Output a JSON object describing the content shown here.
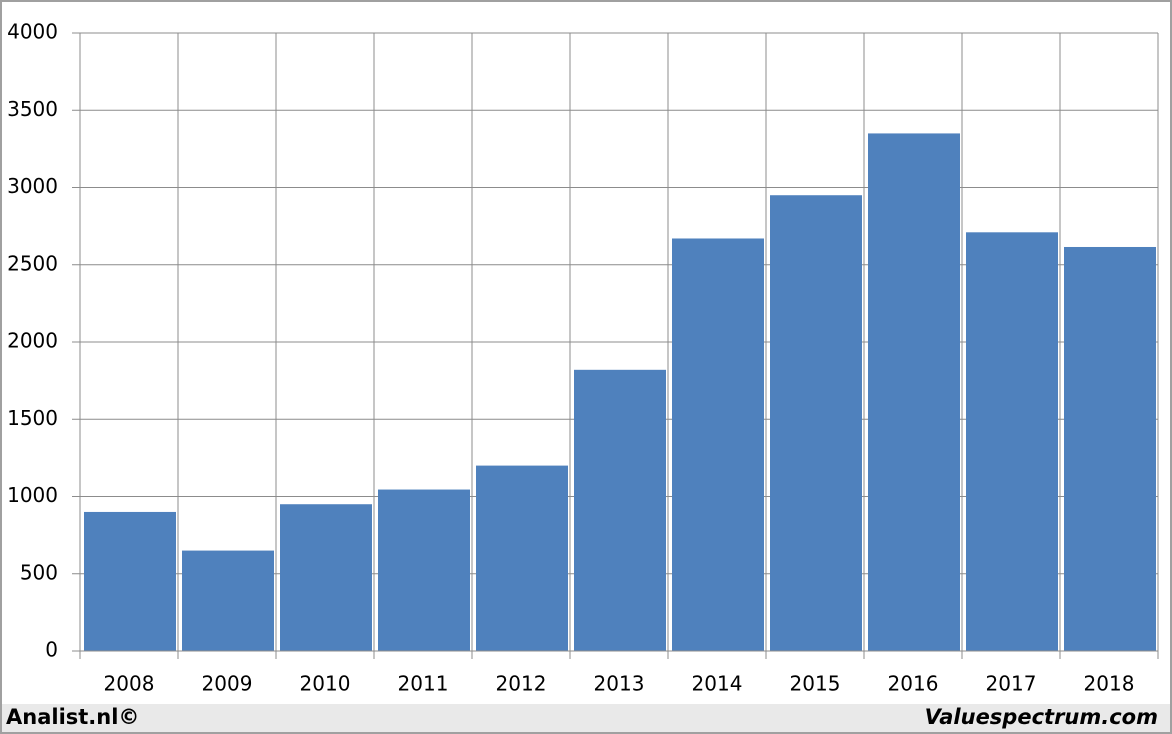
{
  "chart_data": {
    "type": "bar",
    "categories": [
      "2008",
      "2009",
      "2010",
      "2011",
      "2012",
      "2013",
      "2014",
      "2015",
      "2016",
      "2017",
      "2018"
    ],
    "values": [
      900,
      650,
      950,
      1045,
      1200,
      1820,
      2670,
      2950,
      3350,
      2710,
      2615
    ],
    "color": "#4f81bd",
    "ylim": [
      0,
      4000
    ],
    "yticks": [
      0,
      500,
      1000,
      1500,
      2000,
      2500,
      3000,
      3500,
      4000
    ],
    "grid": true
  },
  "footer": {
    "left": "Analist.nl©",
    "right": "Valuespectrum.com"
  }
}
